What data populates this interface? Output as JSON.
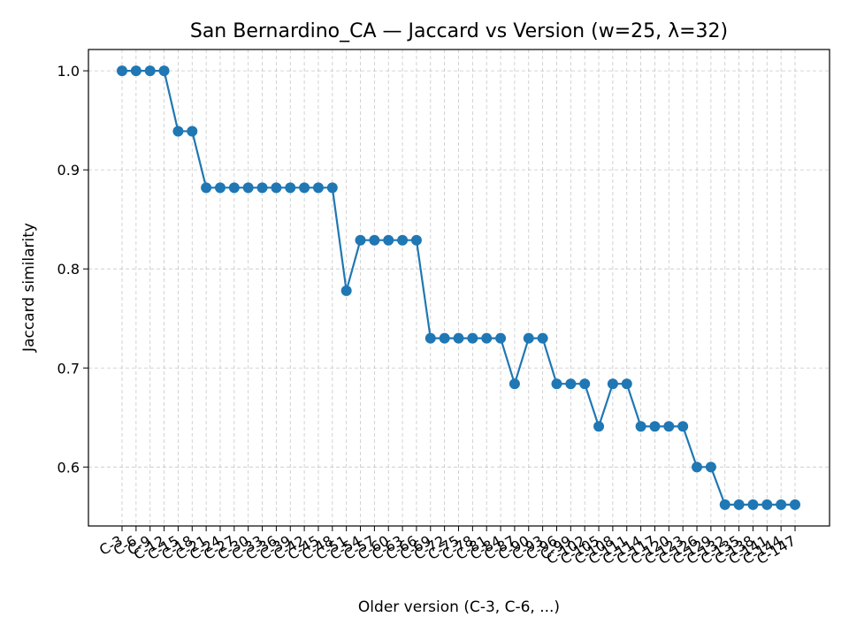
{
  "chart_data": {
    "type": "line",
    "title": "San Bernardino_CA — Jaccard vs Version (w=25, λ=32)",
    "xlabel": "Older version (C-3, C-6, ...)",
    "ylabel": "Jaccard similarity",
    "categories": [
      "C-3",
      "C-6",
      "C-9",
      "C-12",
      "C-15",
      "C-18",
      "C-21",
      "C-24",
      "C-27",
      "C-30",
      "C-33",
      "C-36",
      "C-39",
      "C-42",
      "C-45",
      "C-48",
      "C-51",
      "C-54",
      "C-57",
      "C-60",
      "C-63",
      "C-66",
      "C-69",
      "C-72",
      "C-75",
      "C-78",
      "C-81",
      "C-84",
      "C-87",
      "C-90",
      "C-93",
      "C-96",
      "C-99",
      "C-102",
      "C-105",
      "C-108",
      "C-111",
      "C-114",
      "C-117",
      "C-120",
      "C-123",
      "C-126",
      "C-129",
      "C-132",
      "C-135",
      "C-138",
      "C-141",
      "C-144",
      "C-147"
    ],
    "values": [
      1.0,
      1.0,
      1.0,
      1.0,
      0.939,
      0.939,
      0.882,
      0.882,
      0.882,
      0.882,
      0.882,
      0.882,
      0.882,
      0.882,
      0.882,
      0.882,
      0.778,
      0.829,
      0.829,
      0.829,
      0.829,
      0.829,
      0.73,
      0.73,
      0.73,
      0.73,
      0.73,
      0.73,
      0.684,
      0.73,
      0.73,
      0.684,
      0.684,
      0.684,
      0.641,
      0.684,
      0.684,
      0.641,
      0.641,
      0.641,
      0.641,
      0.6,
      0.6,
      0.562,
      0.562,
      0.562,
      0.562,
      0.562,
      0.562
    ],
    "yticks": [
      0.6,
      0.7,
      0.8,
      0.9,
      1.0
    ],
    "ytick_labels": [
      "0.6",
      "0.7",
      "0.8",
      "0.9",
      "1.0"
    ],
    "ylim": [
      0.5405,
      1.0215
    ],
    "grid": true,
    "color": "#1f77b4"
  }
}
